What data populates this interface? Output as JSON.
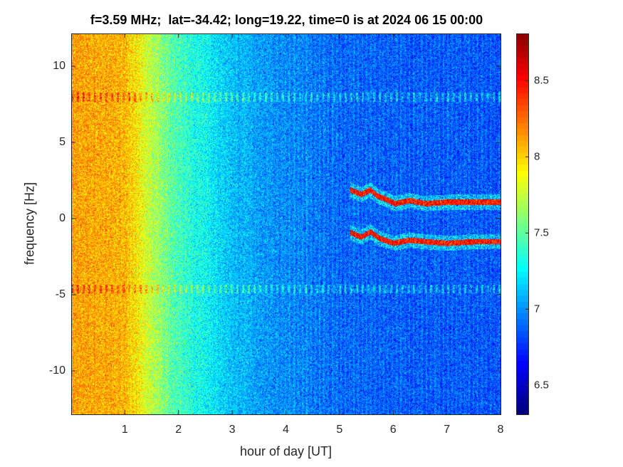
{
  "chart_data": {
    "type": "heatmap",
    "title": "f=3.59 MHz;  lat=-34.42; long=19.22, time=0 is at 2024 06 15 00:00",
    "xlabel": "hour of day [UT]",
    "ylabel": "frequency [Hz]",
    "xlim": [
      0,
      8
    ],
    "ylim": [
      -12.85,
      12.15
    ],
    "xticks": [
      1,
      2,
      3,
      4,
      5,
      6,
      7,
      8
    ],
    "xtick_labels": [
      "1",
      "2",
      "3",
      "4",
      "5",
      "6",
      "7",
      "8"
    ],
    "yticks": [
      10,
      5,
      0,
      -5,
      -10
    ],
    "ytick_labels": [
      "10",
      "5",
      "0",
      "-5",
      "-10"
    ],
    "colormap": "jet",
    "clim": [
      6.31,
      8.81
    ],
    "colorbar_ticks": [
      8.5,
      8,
      7.5,
      7,
      6.5
    ],
    "colorbar_tick_labels": [
      "8.5",
      "8",
      "7.5",
      "7",
      "6.5"
    ],
    "background_level": {
      "hour": [
        0,
        1,
        1.5,
        2,
        3,
        4,
        5,
        8
      ],
      "value": [
        8.1,
        8.05,
        7.7,
        7.4,
        7.1,
        6.95,
        6.85,
        6.8
      ]
    },
    "bands_hz": [
      8.0,
      -4.6
    ],
    "traces": [
      {
        "hour": [
          5.2,
          5.4,
          5.57,
          5.7,
          5.85,
          6.03,
          6.3,
          6.6,
          7.0,
          7.5,
          8.0
        ],
        "hz": [
          1.9,
          1.6,
          1.9,
          1.5,
          1.3,
          1.0,
          1.2,
          1.0,
          1.1,
          1.1,
          1.1
        ]
      },
      {
        "hour": [
          5.2,
          5.4,
          5.57,
          5.75,
          6.0,
          6.3,
          6.6,
          7.0,
          7.5,
          8.0
        ],
        "hz": [
          -0.9,
          -1.2,
          -0.85,
          -1.3,
          -1.6,
          -1.4,
          -1.5,
          -1.6,
          -1.5,
          -1.5
        ]
      }
    ]
  }
}
